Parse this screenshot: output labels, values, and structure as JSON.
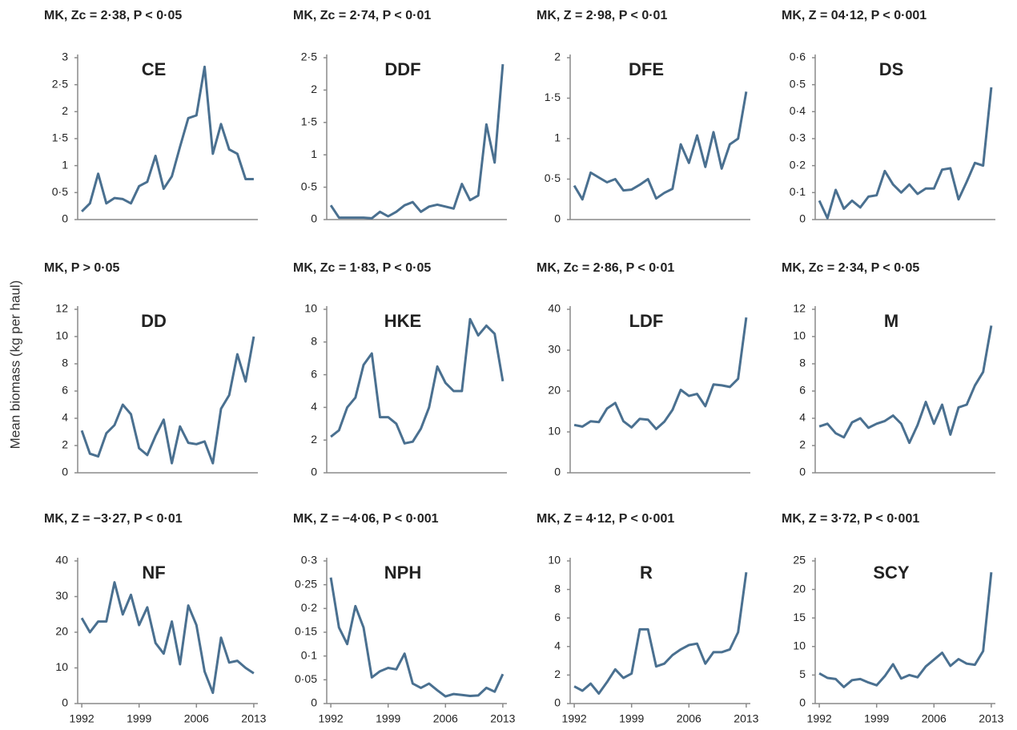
{
  "ylabel": "Mean biomass (kg per haul)",
  "chart_data": [
    {
      "type": "line",
      "title": "CE",
      "subtitle": "MK, Zc = 2·38, P < 0·05",
      "color": "#4a7090",
      "x": [
        1992,
        1993,
        1994,
        1995,
        1996,
        1997,
        1998,
        1999,
        2000,
        2001,
        2002,
        2003,
        2004,
        2005,
        2006,
        2007,
        2008,
        2009,
        2010,
        2011,
        2012,
        2013
      ],
      "values": [
        0.15,
        0.3,
        0.85,
        0.3,
        0.4,
        0.38,
        0.3,
        0.62,
        0.7,
        1.18,
        0.57,
        0.8,
        1.35,
        1.88,
        1.93,
        2.83,
        1.22,
        1.77,
        1.3,
        1.22,
        0.75,
        0.75
      ],
      "xlim": [
        1991.5,
        2013.5
      ],
      "ylim": [
        0,
        3
      ],
      "yticks": [
        0,
        {
          "value": 0.5,
          "label": "0·5"
        },
        1,
        {
          "value": 1.5,
          "label": "1·5"
        },
        2,
        {
          "value": 2.5,
          "label": "2·5"
        },
        3
      ]
    },
    {
      "type": "line",
      "title": "DDF",
      "subtitle": "MK, Zc = 2·74, P < 0·01",
      "color": "#4a7090",
      "x": [
        1992,
        1993,
        1994,
        1995,
        1996,
        1997,
        1998,
        1999,
        2000,
        2001,
        2002,
        2003,
        2004,
        2005,
        2006,
        2007,
        2008,
        2009,
        2010,
        2011,
        2012,
        2013
      ],
      "values": [
        0.22,
        0.03,
        0.03,
        0.03,
        0.03,
        0.02,
        0.12,
        0.05,
        0.12,
        0.22,
        0.27,
        0.12,
        0.2,
        0.23,
        0.2,
        0.17,
        0.55,
        0.3,
        0.37,
        1.47,
        0.88,
        2.4
      ],
      "xlim": [
        1991.5,
        2013.5
      ],
      "ylim": [
        0,
        2.5
      ],
      "yticks": [
        0,
        {
          "value": 0.5,
          "label": "0·5"
        },
        1,
        {
          "value": 1.5,
          "label": "1·5"
        },
        2,
        {
          "value": 2.5,
          "label": "2·5"
        }
      ]
    },
    {
      "type": "line",
      "title": "DFE",
      "subtitle": "MK, Z = 2·98, P < 0·01",
      "color": "#4a7090",
      "x": [
        1992,
        1993,
        1994,
        1995,
        1996,
        1997,
        1998,
        1999,
        2000,
        2001,
        2002,
        2003,
        2004,
        2005,
        2006,
        2007,
        2008,
        2009,
        2010,
        2011,
        2012,
        2013
      ],
      "values": [
        0.42,
        0.25,
        0.58,
        0.52,
        0.46,
        0.5,
        0.36,
        0.37,
        0.43,
        0.5,
        0.26,
        0.33,
        0.38,
        0.93,
        0.7,
        1.04,
        0.65,
        1.08,
        0.63,
        0.93,
        1.0,
        1.58
      ],
      "xlim": [
        1991.5,
        2013.5
      ],
      "ylim": [
        0,
        2
      ],
      "yticks": [
        0,
        {
          "value": 0.5,
          "label": "0·5"
        },
        1,
        {
          "value": 1.5,
          "label": "1·5"
        },
        2
      ]
    },
    {
      "type": "line",
      "title": "DS",
      "subtitle": "MK, Z = 04·12, P < 0·001",
      "color": "#4a7090",
      "x": [
        1992,
        1993,
        1994,
        1995,
        1996,
        1997,
        1998,
        1999,
        2000,
        2001,
        2002,
        2003,
        2004,
        2005,
        2006,
        2007,
        2008,
        2009,
        2010,
        2011,
        2012,
        2013
      ],
      "values": [
        0.07,
        0.005,
        0.11,
        0.04,
        0.07,
        0.045,
        0.085,
        0.09,
        0.18,
        0.13,
        0.1,
        0.13,
        0.095,
        0.115,
        0.115,
        0.185,
        0.19,
        0.075,
        0.14,
        0.21,
        0.2,
        0.49
      ],
      "xlim": [
        1991.5,
        2013.5
      ],
      "ylim": [
        0,
        0.6
      ],
      "yticks": [
        0,
        {
          "value": 0.1,
          "label": "0·1"
        },
        {
          "value": 0.2,
          "label": "0·2"
        },
        {
          "value": 0.3,
          "label": "0·3"
        },
        {
          "value": 0.4,
          "label": "0·4"
        },
        {
          "value": 0.5,
          "label": "0·5"
        },
        {
          "value": 0.6,
          "label": "0·6"
        }
      ]
    },
    {
      "type": "line",
      "title": "DD",
      "subtitle": "MK, P > 0·05",
      "color": "#4a7090",
      "x": [
        1992,
        1993,
        1994,
        1995,
        1996,
        1997,
        1998,
        1999,
        2000,
        2001,
        2002,
        2003,
        2004,
        2005,
        2006,
        2007,
        2008,
        2009,
        2010,
        2011,
        2012,
        2013
      ],
      "values": [
        3.1,
        1.4,
        1.2,
        2.9,
        3.5,
        5.0,
        4.3,
        1.8,
        1.3,
        2.7,
        3.9,
        0.7,
        3.4,
        2.2,
        2.1,
        2.3,
        0.7,
        4.7,
        5.7,
        8.7,
        6.7,
        10.0
      ],
      "xlim": [
        1991.5,
        2013.5
      ],
      "ylim": [
        0,
        12
      ],
      "yticks": [
        0,
        2,
        4,
        6,
        8,
        10,
        12
      ]
    },
    {
      "type": "line",
      "title": "HKE",
      "subtitle": "MK, Zc = 1·83, P < 0·05",
      "color": "#4a7090",
      "x": [
        1992,
        1993,
        1994,
        1995,
        1996,
        1997,
        1998,
        1999,
        2000,
        2001,
        2002,
        2003,
        2004,
        2005,
        2006,
        2007,
        2008,
        2009,
        2010,
        2011,
        2012,
        2013
      ],
      "values": [
        2.2,
        2.6,
        4.0,
        4.6,
        6.6,
        7.3,
        3.4,
        3.4,
        3.0,
        1.8,
        1.9,
        2.7,
        4.0,
        6.5,
        5.5,
        5.0,
        5.0,
        9.4,
        8.4,
        9.0,
        8.5,
        5.6
      ],
      "xlim": [
        1991.5,
        2013.5
      ],
      "ylim": [
        0,
        10
      ],
      "yticks": [
        0,
        2,
        4,
        6,
        8,
        10
      ]
    },
    {
      "type": "line",
      "title": "LDF",
      "subtitle": "MK, Zc = 2·86, P < 0·01",
      "color": "#4a7090",
      "x": [
        1992,
        1993,
        1994,
        1995,
        1996,
        1997,
        1998,
        1999,
        2000,
        2001,
        2002,
        2003,
        2004,
        2005,
        2006,
        2007,
        2008,
        2009,
        2010,
        2011,
        2012,
        2013
      ],
      "values": [
        11.7,
        11.3,
        12.6,
        12.4,
        15.7,
        17.1,
        12.6,
        11.1,
        13.2,
        13.0,
        10.7,
        12.5,
        15.4,
        20.3,
        18.8,
        19.3,
        16.3,
        21.6,
        21.4,
        21.0,
        23.0,
        38.0
      ],
      "xlim": [
        1991.5,
        2013.5
      ],
      "ylim": [
        0,
        40
      ],
      "yticks": [
        0,
        10,
        20,
        30,
        40
      ]
    },
    {
      "type": "line",
      "title": "M",
      "subtitle": "MK, Zc = 2·34, P < 0·05",
      "color": "#4a7090",
      "x": [
        1992,
        1993,
        1994,
        1995,
        1996,
        1997,
        1998,
        1999,
        2000,
        2001,
        2002,
        2003,
        2004,
        2005,
        2006,
        2007,
        2008,
        2009,
        2010,
        2011,
        2012,
        2013
      ],
      "values": [
        3.4,
        3.6,
        2.9,
        2.6,
        3.7,
        4.0,
        3.3,
        3.6,
        3.8,
        4.2,
        3.6,
        2.2,
        3.5,
        5.2,
        3.6,
        5.0,
        2.8,
        4.8,
        5.0,
        6.4,
        7.4,
        10.8
      ],
      "xlim": [
        1991.5,
        2013.5
      ],
      "ylim": [
        0,
        12
      ],
      "yticks": [
        0,
        2,
        4,
        6,
        8,
        10,
        12
      ]
    },
    {
      "type": "line",
      "title": "NF",
      "subtitle": "MK, Z = −3·27, P < 0·01",
      "color": "#4a7090",
      "x": [
        1992,
        1993,
        1994,
        1995,
        1996,
        1997,
        1998,
        1999,
        2000,
        2001,
        2002,
        2003,
        2004,
        2005,
        2006,
        2007,
        2008,
        2009,
        2010,
        2011,
        2012,
        2013
      ],
      "values": [
        24,
        20,
        23,
        23,
        34,
        25,
        30.5,
        22,
        27,
        17,
        14,
        23,
        11,
        27.5,
        22,
        9,
        3,
        18.5,
        11.5,
        12,
        10,
        8.5
      ],
      "xlim": [
        1991.5,
        2013.5
      ],
      "ylim": [
        0,
        40
      ],
      "yticks": [
        0,
        10,
        20,
        30,
        40
      ],
      "xticks": [
        1992,
        1999,
        2006,
        2013
      ]
    },
    {
      "type": "line",
      "title": "NPH",
      "subtitle": "MK, Z = −4·06, P < 0·001",
      "color": "#4a7090",
      "x": [
        1992,
        1993,
        1994,
        1995,
        1996,
        1997,
        1998,
        1999,
        2000,
        2001,
        2002,
        2003,
        2004,
        2005,
        2006,
        2007,
        2008,
        2009,
        2010,
        2011,
        2012,
        2013
      ],
      "values": [
        0.265,
        0.16,
        0.125,
        0.205,
        0.16,
        0.055,
        0.068,
        0.075,
        0.072,
        0.105,
        0.042,
        0.033,
        0.042,
        0.028,
        0.015,
        0.02,
        0.018,
        0.016,
        0.017,
        0.033,
        0.025,
        0.062
      ],
      "xlim": [
        1991.5,
        2013.5
      ],
      "ylim": [
        0,
        0.3
      ],
      "yticks": [
        0,
        {
          "value": 0.05,
          "label": "0·05"
        },
        {
          "value": 0.1,
          "label": "0·1"
        },
        {
          "value": 0.15,
          "label": "0·15"
        },
        {
          "value": 0.2,
          "label": "0·2"
        },
        {
          "value": 0.25,
          "label": "0·25"
        },
        {
          "value": 0.3,
          "label": "0·3"
        }
      ],
      "xticks": [
        1992,
        1999,
        2006,
        2013
      ]
    },
    {
      "type": "line",
      "title": "R",
      "subtitle": "MK, Z = 4·12, P < 0·001",
      "color": "#4a7090",
      "x": [
        1992,
        1993,
        1994,
        1995,
        1996,
        1997,
        1998,
        1999,
        2000,
        2001,
        2002,
        2003,
        2004,
        2005,
        2006,
        2007,
        2008,
        2009,
        2010,
        2011,
        2012,
        2013
      ],
      "values": [
        1.2,
        0.9,
        1.4,
        0.7,
        1.5,
        2.4,
        1.8,
        2.1,
        5.2,
        5.2,
        2.6,
        2.8,
        3.4,
        3.8,
        4.1,
        4.2,
        2.8,
        3.6,
        3.6,
        3.8,
        5.0,
        9.2
      ],
      "xlim": [
        1991.5,
        2013.5
      ],
      "ylim": [
        0,
        10
      ],
      "yticks": [
        0,
        2,
        4,
        6,
        8,
        10
      ],
      "xticks": [
        1992,
        1999,
        2006,
        2013
      ]
    },
    {
      "type": "line",
      "title": "SCY",
      "subtitle": "MK, Z = 3·72, P < 0·001",
      "color": "#4a7090",
      "x": [
        1992,
        1993,
        1994,
        1995,
        1996,
        1997,
        1998,
        1999,
        2000,
        2001,
        2002,
        2003,
        2004,
        2005,
        2006,
        2007,
        2008,
        2009,
        2010,
        2011,
        2012,
        2013
      ],
      "values": [
        5.3,
        4.5,
        4.3,
        2.9,
        4.1,
        4.3,
        3.7,
        3.2,
        4.8,
        6.9,
        4.4,
        5.0,
        4.6,
        6.5,
        7.7,
        8.9,
        6.6,
        7.8,
        7.0,
        6.8,
        9.2,
        23.0
      ],
      "xlim": [
        1991.5,
        2013.5
      ],
      "ylim": [
        0,
        25
      ],
      "yticks": [
        0,
        5,
        10,
        15,
        20,
        25
      ],
      "xticks": [
        1992,
        1999,
        2006,
        2013
      ]
    }
  ]
}
